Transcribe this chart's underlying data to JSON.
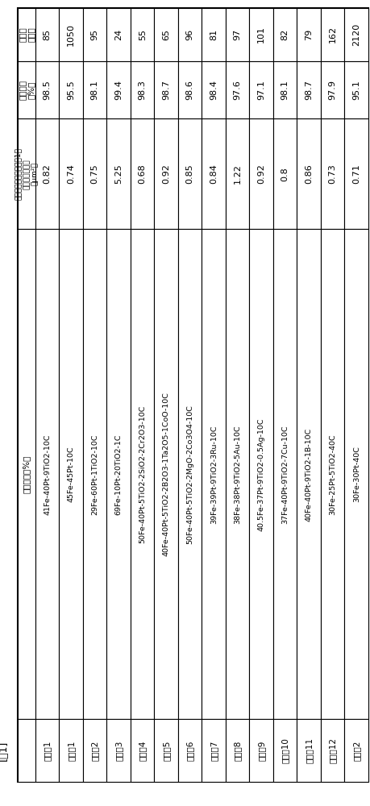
{
  "title": "[表1]",
  "row_headers": [
    "実施例1",
    "比較例1",
    "実施例2",
    "実施例3",
    "実施例4",
    "実施例5",
    "実施例6",
    "実施例7",
    "実施例8",
    "実施例9",
    "実施例10",
    "実施例11",
    "実施例12",
    "比較例2"
  ],
  "compositions": [
    "41Fe-40Pt-9TiO2-10C",
    "45Fe-45Pt-10C",
    "29Fe-60Pt-1TiO2-10C",
    "69Fe-10Pt-20TiO2-1C",
    "50Fe-40Pt-5TiO2-2SiO2-2Cr2O3-10C",
    "40Fe-40Pt-5TiO2-2B2O3-1Ta2O5-1CoO-10C",
    "50Fe-40Pt-5TiO2-2MgO-2Co3O4-10C",
    "39Fe-39Pt-9TiO2-3Ru-10C",
    "38Fe-38Pt-9TiO2-5Au-10C",
    "40.5Fe-37Pt-9TiO2-0.5Ag-10C",
    "37Fe-40Pt-9TiO2-7Cu-10C",
    "40Fe-40Pt-9TiO2-1B-10C",
    "30Fe-25Pt-5TiO2-40C",
    "30Fe-30Pt-40C"
  ],
  "col_header_label": "組成（磨尔％）",
  "col_header_area": "合金相以外的部分的每1个\n粒子的平均面积（μm²）",
  "col_header_density": "相対密度（％）",
  "col_header_particles": "粉粒数（个）",
  "avg_areas": [
    "0.82",
    "0.74",
    "0.75",
    "5.25",
    "0.68",
    "0.92",
    "0.85",
    "0.84",
    "1.22",
    "0.92",
    "0.8",
    "0.86",
    "0.73",
    "0.71"
  ],
  "densities": [
    "98.5",
    "95.5",
    "98.1",
    "99.4",
    "98.3",
    "98.7",
    "98.6",
    "98.4",
    "97.6",
    "97.1",
    "98.1",
    "98.7",
    "97.9",
    "95.1"
  ],
  "particle_counts": [
    "85",
    "1050",
    "95",
    "24",
    "55",
    "65",
    "96",
    "81",
    "97",
    "101",
    "82",
    "79",
    "162",
    "2120"
  ],
  "bg_color": "#ffffff",
  "border_color": "#000000"
}
